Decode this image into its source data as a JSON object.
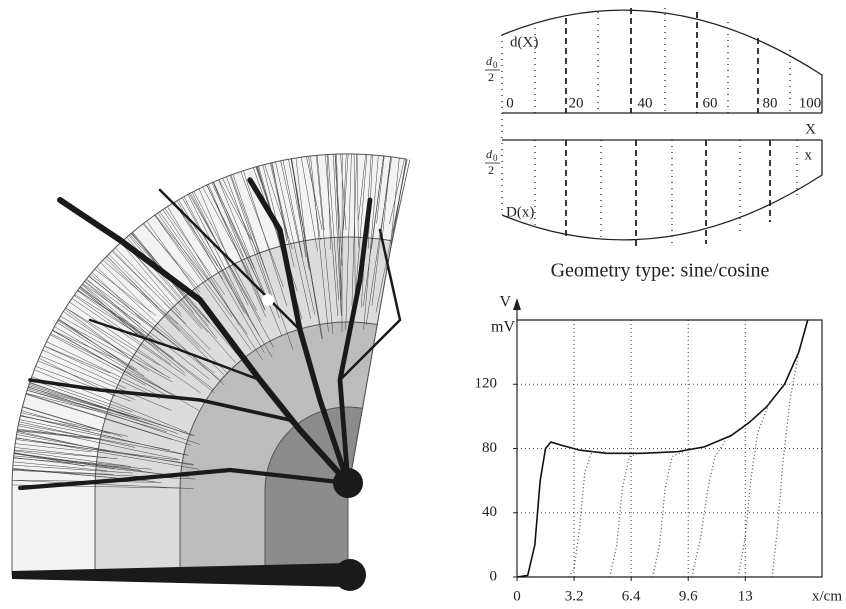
{
  "geometry_diagram": {
    "upper_label": "d(X)",
    "lower_label": "D(x)",
    "half_diameter_labels": [
      {
        "numerator": "d",
        "subscript": "0",
        "denominator": "2"
      },
      {
        "numerator": "d",
        "subscript": "0",
        "denominator": "2"
      }
    ],
    "position_labels": [
      "0",
      "20",
      "40",
      "60",
      "80",
      "100"
    ],
    "upper_axis_label": "X",
    "lower_axis_label": "x",
    "caption": "Geometry type: sine/cosine"
  },
  "chart_data": {
    "type": "line",
    "y_label": "V",
    "y_unit_label": "mV",
    "x_label": "x/cm",
    "xlim": [
      0,
      17.1
    ],
    "ylim": [
      0,
      160
    ],
    "xticks": [
      0,
      3.2,
      6.4,
      9.6,
      {
        "value": 12.8,
        "label": "13"
      }
    ],
    "yticks": [
      0,
      40,
      80,
      120
    ],
    "grid": true,
    "series": [
      {
        "color": "#111111",
        "line_style": "solid",
        "x": [
          0,
          0.6,
          1.0,
          1.3,
          1.6,
          1.9,
          2.5,
          3.5,
          5,
          7,
          9,
          10.5,
          12,
          13,
          14,
          15,
          15.8,
          16.3
        ],
        "values": [
          0,
          1,
          20,
          60,
          80,
          84,
          82,
          79,
          77,
          77,
          78,
          81,
          88,
          96,
          106,
          120,
          140,
          160
        ]
      },
      {
        "color": "#555555",
        "line_style": "dotted",
        "x": [
          2.9,
          3.2,
          3.5,
          3.8,
          4.2,
          5
        ],
        "values": [
          0,
          5,
          30,
          65,
          78,
          78
        ]
      },
      {
        "color": "#555555",
        "line_style": "dotted",
        "x": [
          5.2,
          5.6,
          5.9,
          6.3,
          6.8
        ],
        "values": [
          0,
          20,
          55,
          75,
          77
        ]
      },
      {
        "color": "#555555",
        "line_style": "dotted",
        "x": [
          7.6,
          8.0,
          8.3,
          8.7,
          9.3
        ],
        "values": [
          0,
          20,
          55,
          75,
          78
        ]
      },
      {
        "color": "#555555",
        "line_style": "dotted",
        "x": [
          9.8,
          10.3,
          10.7,
          11.1,
          11.7
        ],
        "values": [
          0,
          25,
          55,
          75,
          85
        ]
      },
      {
        "color": "#555555",
        "line_style": "dotted",
        "x": [
          12.4,
          12.8,
          13.1,
          13.5,
          14.2
        ],
        "values": [
          0,
          25,
          60,
          90,
          110
        ]
      },
      {
        "color": "#555555",
        "line_style": "dotted",
        "x": [
          14.3,
          14.6,
          14.9,
          15.3,
          15.8
        ],
        "values": [
          0,
          30,
          70,
          110,
          140
        ]
      }
    ]
  }
}
